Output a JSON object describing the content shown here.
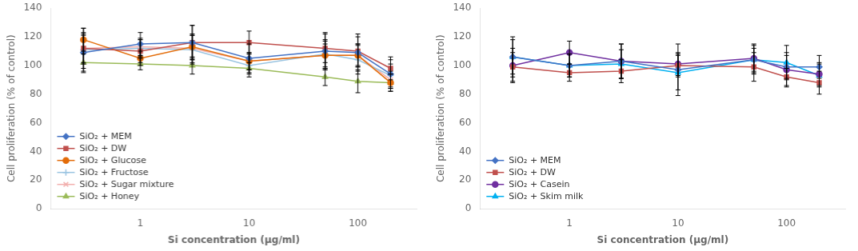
{
  "chart_data": [
    {
      "type": "line",
      "xlabel": "Si concentration (μg/ml)",
      "ylabel": "Cell proliferation (% of control)",
      "x": [
        0.3,
        1,
        3,
        10,
        50,
        100,
        200
      ],
      "series": [
        {
          "name": "SiO₂ + MEM",
          "color": "#4472C4",
          "marker": "diamond",
          "values": [
            109,
            115,
            116,
            105,
            110,
            109,
            94
          ],
          "errors": [
            14,
            8,
            12,
            10,
            13,
            13,
            10
          ]
        },
        {
          "name": "SiO₂ + DW",
          "color": "#C0504D",
          "marker": "square",
          "values": [
            112,
            110,
            116,
            116,
            112,
            110,
            98
          ],
          "errors": [
            14,
            8,
            12,
            8,
            10,
            10,
            8
          ]
        },
        {
          "name": "SiO₂ + Glucose",
          "color": "#E36C09",
          "marker": "circle",
          "values": [
            118,
            105,
            113,
            103,
            107,
            107,
            88
          ],
          "errors": [
            8,
            5,
            8,
            6,
            8,
            8,
            6
          ]
        },
        {
          "name": "SiO₂ + Fructose",
          "color": "#9AC4E1",
          "marker": "plus",
          "values": [
            111,
            112,
            111,
            100,
            108,
            104,
            93
          ],
          "errors": [
            10,
            6,
            10,
            8,
            10,
            10,
            8
          ]
        },
        {
          "name": "SiO₂ + Sugar mixture",
          "color": "#F2AFAD",
          "marker": "x",
          "values": [
            112,
            113,
            112,
            103,
            107,
            107,
            90
          ],
          "errors": [
            10,
            6,
            10,
            6,
            10,
            8,
            6
          ]
        },
        {
          "name": "SiO₂ + Honey",
          "color": "#9BBB59",
          "marker": "triangle",
          "values": [
            102,
            101,
            100,
            98,
            92,
            89,
            88
          ],
          "errors": [
            6,
            4,
            6,
            4,
            6,
            8,
            6
          ]
        }
      ],
      "log": "x",
      "xlim": [
        0.15,
        350
      ],
      "xticks": [
        1,
        10,
        100
      ],
      "ylim": [
        0,
        140
      ],
      "yticks": [
        0,
        20,
        40,
        60,
        80,
        100,
        120,
        140
      ],
      "grid": false,
      "legend": "lower left"
    },
    {
      "type": "line",
      "xlabel": "Si concentration (μg/ml)",
      "ylabel": "Cell proliferation (% of control)",
      "x": [
        0.3,
        1,
        3,
        10,
        50,
        100,
        200
      ],
      "series": [
        {
          "name": "SiO₂ + MEM",
          "color": "#4472C4",
          "marker": "diamond",
          "values": [
            106,
            100,
            103,
            97,
            104,
            99,
            99
          ],
          "errors": [
            14,
            8,
            12,
            18,
            10,
            8,
            8
          ]
        },
        {
          "name": "SiO₂ + DW",
          "color": "#C0504D",
          "marker": "square",
          "values": [
            99,
            95,
            96,
            100,
            99,
            92,
            88
          ],
          "errors": [
            10,
            6,
            8,
            8,
            10,
            6,
            8
          ]
        },
        {
          "name": "SiO₂ + Casein",
          "color": "#7030A0",
          "marker": "circle",
          "values": [
            100,
            109,
            103,
            101,
            105,
            97,
            94
          ],
          "errors": [
            12,
            8,
            12,
            8,
            10,
            12,
            8
          ]
        },
        {
          "name": "SiO₂ + Skim milk",
          "color": "#00B0F0",
          "marker": "triangle",
          "values": [
            106,
            100,
            101,
            95,
            104,
            102,
            93
          ],
          "errors": [
            12,
            8,
            10,
            12,
            8,
            12,
            8
          ]
        }
      ],
      "log": "x",
      "xlim": [
        0.15,
        350
      ],
      "xticks": [
        1,
        10,
        100
      ],
      "ylim": [
        0,
        140
      ],
      "yticks": [
        0,
        20,
        40,
        60,
        80,
        100,
        120,
        140
      ],
      "grid": false,
      "legend": "lower left"
    }
  ]
}
